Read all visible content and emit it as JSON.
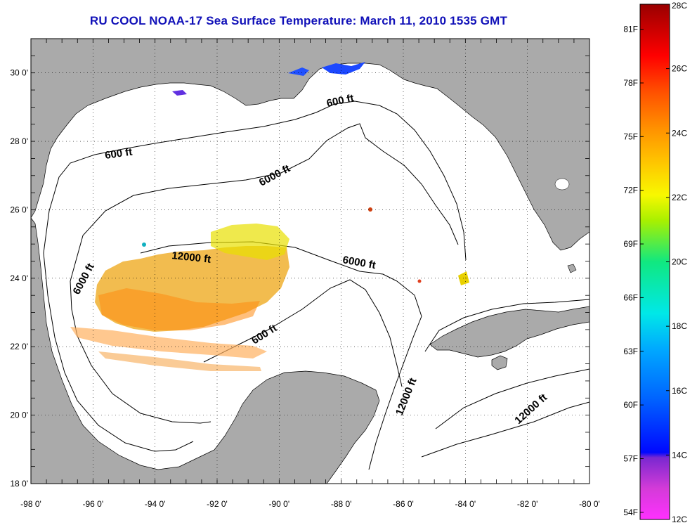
{
  "title": "RU COOL  NOAA-17  Sea Surface Temperature:  March 11, 2010 1535 GMT",
  "x_ticks": [
    "-98 0'",
    "-96 0'",
    "-94 0'",
    "-92 0'",
    "-90 0'",
    "-88 0'",
    "-86 0'",
    "-84 0'",
    "-82 0'",
    "-80 0'"
  ],
  "y_ticks": [
    "30 0'",
    "28 0'",
    "26 0'",
    "24 0'",
    "22 0'",
    "20 0'",
    "18 0'"
  ],
  "contour_labels": [
    "600 ft",
    "600 ft",
    "6000 ft",
    "12000 ft",
    "6000 ft",
    "6000 ft",
    "600 ft",
    "12000 ft",
    "12000 ft"
  ],
  "colorbar": {
    "celsius_labels": [
      "28C",
      "26C",
      "24C",
      "22C",
      "20C",
      "18C",
      "16C",
      "14C",
      "12C"
    ],
    "fahrenheit_labels": [
      "81F",
      "78F",
      "75F",
      "72F",
      "69F",
      "66F",
      "63F",
      "60F",
      "57F",
      "54F"
    ],
    "range_c": [
      12,
      28
    ]
  },
  "colors": {
    "land": "#aaaaaa",
    "sea": "#ffffff",
    "title": "#1010b8"
  },
  "map_extent": {
    "lon": [
      -98,
      -80
    ],
    "lat": [
      18,
      31
    ]
  }
}
